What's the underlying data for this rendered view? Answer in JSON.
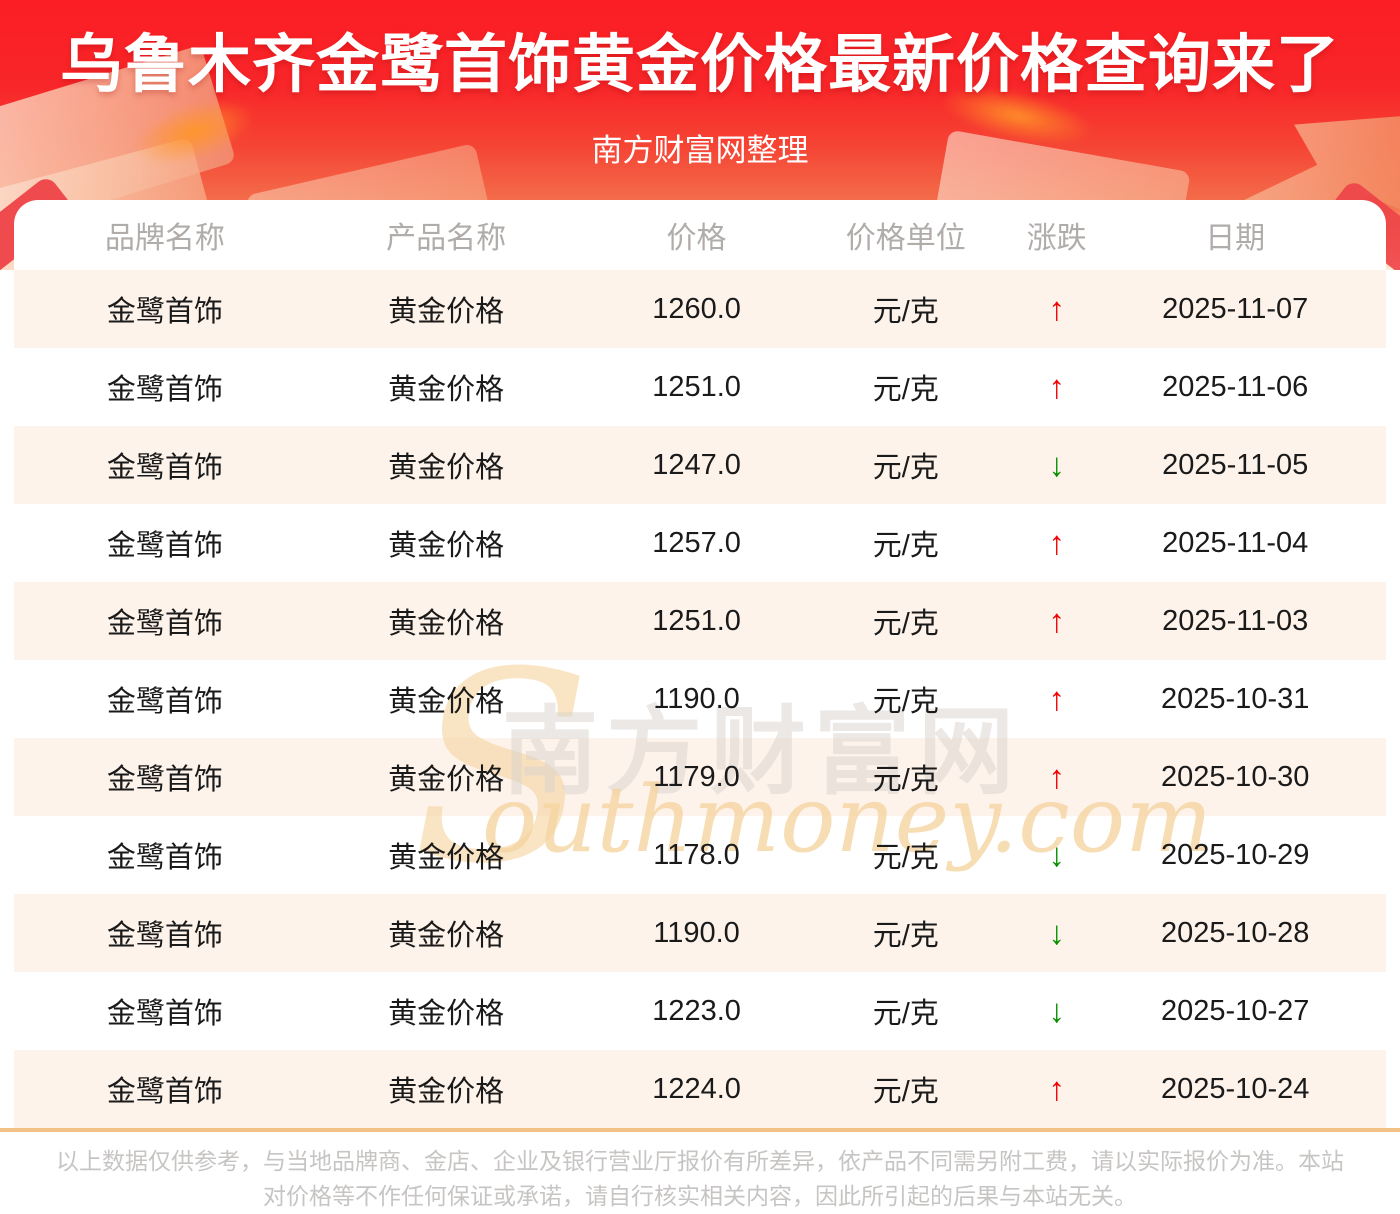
{
  "header": {
    "title": "乌鲁木齐金鹭首饰黄金价格最新价格查询来了",
    "subtitle": "南方财富网整理"
  },
  "table": {
    "columns": [
      "品牌名称",
      "产品名称",
      "价格",
      "价格单位",
      "涨跌",
      "日期"
    ],
    "rows": [
      {
        "brand": "金鹭首饰",
        "product": "黄金价格",
        "price": "1260.0",
        "unit": "元/克",
        "trend": "up",
        "date": "2025-11-07"
      },
      {
        "brand": "金鹭首饰",
        "product": "黄金价格",
        "price": "1251.0",
        "unit": "元/克",
        "trend": "up",
        "date": "2025-11-06"
      },
      {
        "brand": "金鹭首饰",
        "product": "黄金价格",
        "price": "1247.0",
        "unit": "元/克",
        "trend": "down",
        "date": "2025-11-05"
      },
      {
        "brand": "金鹭首饰",
        "product": "黄金价格",
        "price": "1257.0",
        "unit": "元/克",
        "trend": "up",
        "date": "2025-11-04"
      },
      {
        "brand": "金鹭首饰",
        "product": "黄金价格",
        "price": "1251.0",
        "unit": "元/克",
        "trend": "up",
        "date": "2025-11-03"
      },
      {
        "brand": "金鹭首饰",
        "product": "黄金价格",
        "price": "1190.0",
        "unit": "元/克",
        "trend": "up",
        "date": "2025-10-31"
      },
      {
        "brand": "金鹭首饰",
        "product": "黄金价格",
        "price": "1179.0",
        "unit": "元/克",
        "trend": "up",
        "date": "2025-10-30"
      },
      {
        "brand": "金鹭首饰",
        "product": "黄金价格",
        "price": "1178.0",
        "unit": "元/克",
        "trend": "down",
        "date": "2025-10-29"
      },
      {
        "brand": "金鹭首饰",
        "product": "黄金价格",
        "price": "1190.0",
        "unit": "元/克",
        "trend": "down",
        "date": "2025-10-28"
      },
      {
        "brand": "金鹭首饰",
        "product": "黄金价格",
        "price": "1223.0",
        "unit": "元/克",
        "trend": "down",
        "date": "2025-10-27"
      },
      {
        "brand": "金鹭首饰",
        "product": "黄金价格",
        "price": "1224.0",
        "unit": "元/克",
        "trend": "up",
        "date": "2025-10-24"
      }
    ]
  },
  "chart_data": {
    "type": "table",
    "title": "乌鲁木齐金鹭首饰黄金价格最新价格查询来了",
    "columns": [
      "品牌名称",
      "产品名称",
      "价格",
      "价格单位",
      "涨跌",
      "日期"
    ],
    "x": [
      "2025-11-07",
      "2025-11-06",
      "2025-11-05",
      "2025-11-04",
      "2025-11-03",
      "2025-10-31",
      "2025-10-30",
      "2025-10-29",
      "2025-10-28",
      "2025-10-27",
      "2025-10-24"
    ],
    "series": [
      {
        "name": "金鹭首饰黄金价格(元/克)",
        "values": [
          1260.0,
          1251.0,
          1247.0,
          1257.0,
          1251.0,
          1190.0,
          1179.0,
          1178.0,
          1190.0,
          1223.0,
          1224.0
        ]
      },
      {
        "name": "涨跌",
        "values": [
          "up",
          "up",
          "down",
          "up",
          "up",
          "up",
          "up",
          "down",
          "down",
          "down",
          "up"
        ]
      }
    ]
  },
  "icons": {
    "up_arrow": "↑",
    "down_arrow": "↓"
  },
  "watermark": {
    "swoosh": "S",
    "cn": "南方财富网",
    "en": "outhmoney.com"
  },
  "footer": {
    "disclaimer": "以上数据仅供参考，与当地品牌商、金店、企业及银行营业厅报价有所差异，依产品不同需另附工费，请以实际报价为准。本站对价格等不作任何保证或承诺，请自行核实相关内容，因此所引起的后果与本站无关。"
  },
  "colors": {
    "banner_red": "#fb1e24",
    "banner_fade": "#fbd2a6",
    "row_stripe": "#fdf3eb",
    "divider": "#f2c186",
    "up": "#f40000",
    "down": "#089000",
    "header_text": "#b0acaa",
    "footer_text": "#c7c5c3"
  }
}
